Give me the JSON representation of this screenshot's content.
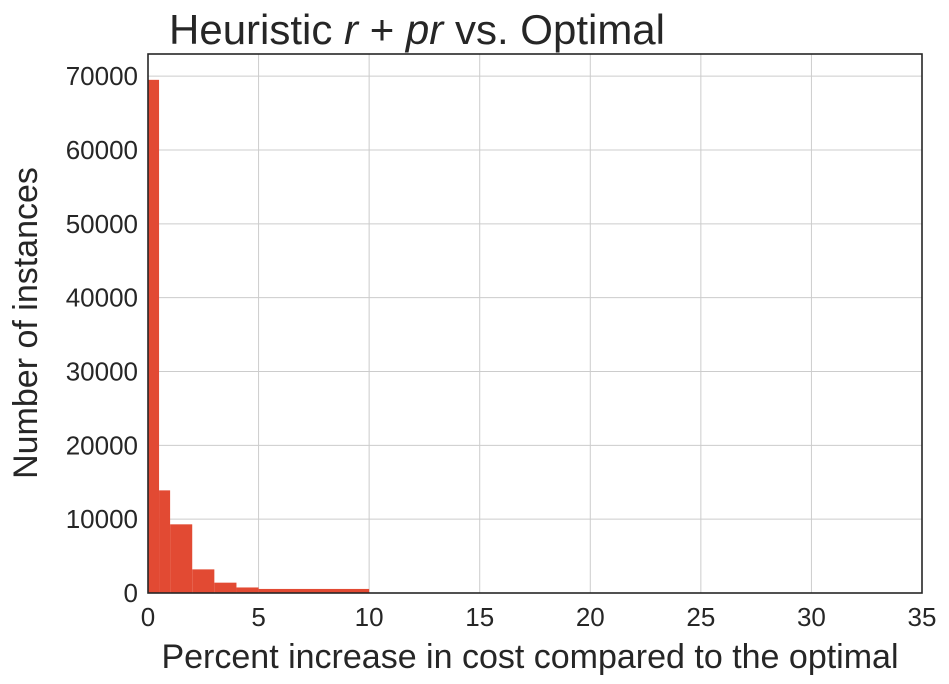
{
  "chart_data": {
    "type": "bar",
    "title": {
      "prefix": "Heuristic ",
      "math_r": "r",
      "math_plus": " + ",
      "math_pr": "pr",
      "suffix": " vs. Optimal"
    },
    "xlabel": "Percent increase in cost compared to the optimal",
    "ylabel": "Number of instances",
    "xlim": [
      0,
      35
    ],
    "ylim": [
      0,
      73000
    ],
    "xticks": [
      0,
      5,
      10,
      15,
      20,
      25,
      30,
      35
    ],
    "yticks": [
      0,
      10000,
      20000,
      30000,
      40000,
      50000,
      60000,
      70000
    ],
    "grid": true,
    "bar_color": "#e24a33",
    "bins": [
      {
        "x0": 0.0,
        "x1": 0.5,
        "count": 69500
      },
      {
        "x0": 0.5,
        "x1": 1.0,
        "count": 13900
      },
      {
        "x0": 1.0,
        "x1": 2.0,
        "count": 9300
      },
      {
        "x0": 2.0,
        "x1": 3.0,
        "count": 3200
      },
      {
        "x0": 3.0,
        "x1": 4.0,
        "count": 1400
      },
      {
        "x0": 4.0,
        "x1": 5.0,
        "count": 750
      },
      {
        "x0": 5.0,
        "x1": 10.0,
        "count": 550
      }
    ]
  }
}
